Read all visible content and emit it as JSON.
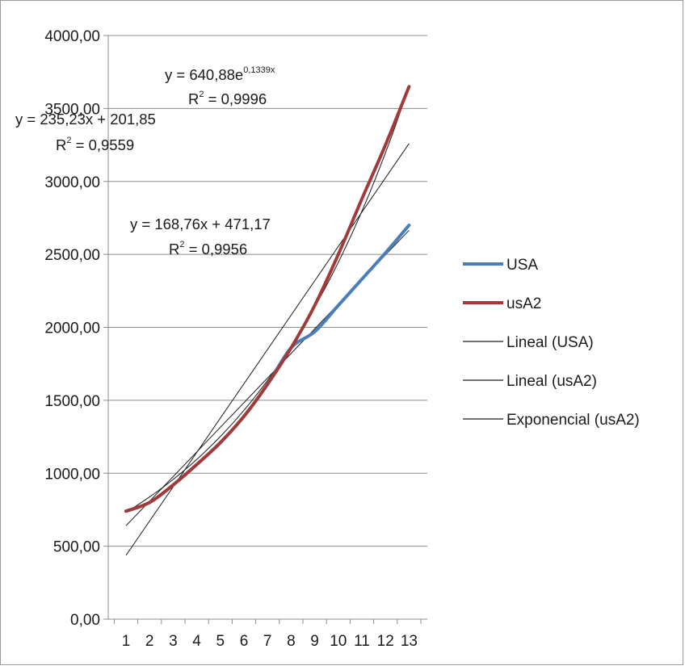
{
  "chart_data": {
    "type": "line",
    "x": [
      1,
      2,
      3,
      4,
      5,
      6,
      7,
      8,
      9,
      10,
      11,
      12,
      13
    ],
    "ylim": [
      0,
      4000
    ],
    "yticks": [
      "0,00",
      "500,00",
      "1000,00",
      "1500,00",
      "2000,00",
      "2500,00",
      "3000,00",
      "3500,00",
      "4000,00"
    ],
    "xticks": [
      "1",
      "2",
      "3",
      "4",
      "5",
      "6",
      "7",
      "8",
      "9",
      "10",
      "11",
      "12",
      "13"
    ],
    "grid": true,
    "legend_position": "right",
    "series": [
      {
        "name": "USA",
        "color": "#4a7ebb",
        "values": [
          740,
          800,
          920,
          1060,
          1210,
          1390,
          1610,
          1860,
          1970,
          2150,
          2330,
          2510,
          2700
        ]
      },
      {
        "name": "usA2",
        "color": "#a33a3a",
        "values": [
          740,
          800,
          920,
          1060,
          1210,
          1390,
          1610,
          1860,
          2150,
          2500,
          2880,
          3250,
          3650
        ]
      }
    ],
    "trendlines": [
      {
        "name": "Lineal (USA)",
        "type": "linear",
        "slope": 168.76,
        "intercept": 471.17,
        "color": "#1a1a1a"
      },
      {
        "name": "Lineal (usA2)",
        "type": "linear",
        "slope": 235.23,
        "intercept": 201.85,
        "color": "#1a1a1a"
      },
      {
        "name": "Exponencial (usA2)",
        "type": "exponential",
        "a": 640.88,
        "b": 0.1339,
        "color": "#1a1a1a"
      }
    ],
    "annotations": {
      "exp_eq_base": "y = 640,88e",
      "exp_eq_exp": "0,1339x",
      "exp_r2_label": "R",
      "exp_r2_sup": "2",
      "exp_r2_value": " = 0,9996",
      "lin2_eq": "y = 235,23x + 201,85",
      "lin2_r2_label": "R",
      "lin2_r2_sup": "2",
      "lin2_r2_value": " = 0,9559",
      "lin1_eq": "y = 168,76x + 471,17",
      "lin1_r2_label": "R",
      "lin1_r2_sup": "2",
      "lin1_r2_value": " = 0,9956"
    }
  }
}
